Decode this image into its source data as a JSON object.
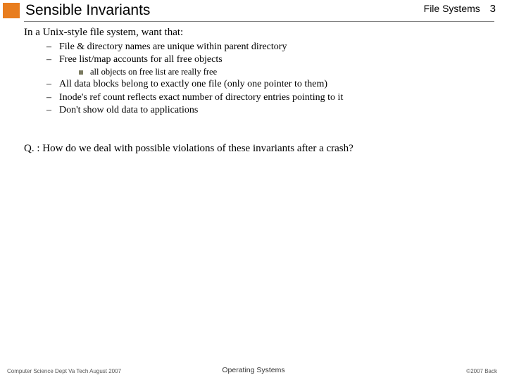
{
  "header": {
    "accent_color": "#e87d1e",
    "title": "Sensible Invariants",
    "topic": "File Systems",
    "page": "3"
  },
  "content": {
    "lead": "In a Unix-style file system, want that:",
    "items": [
      {
        "text": "File & directory names are unique within parent directory"
      },
      {
        "text": "Free list/map accounts for all free objects",
        "sub": [
          "all objects on free list are really free"
        ]
      },
      {
        "text": "All data blocks belong to exactly one file (only one pointer to them)"
      },
      {
        "text": "Inode's ref count reflects exact number of directory entries pointing to it"
      },
      {
        "text": "Don't show old data to applications"
      }
    ],
    "question": "Q. : How do we deal with possible violations of these invariants after a crash?"
  },
  "footer": {
    "left": "Computer Science Dept Va Tech August 2007",
    "center": "Operating Systems",
    "right": "©2007  Back"
  }
}
